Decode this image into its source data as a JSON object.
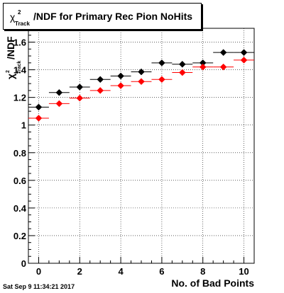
{
  "title": {
    "chi": "χ",
    "superscript": "2",
    "subscript": "Track",
    "main": "/NDF for Primary Rec Pion NoHits"
  },
  "timestamp": "Sat Sep  9 11:34:21 2017",
  "chart_data": {
    "type": "scatter",
    "xlabel": "No. of Bad Points",
    "ylabel": {
      "chi": "χ",
      "superscript": "2",
      "subscript": "Track",
      "suffix": "/NDF"
    },
    "xlim": [
      -0.5,
      10.5
    ],
    "ylim": [
      0,
      1.7
    ],
    "xticks": [
      0,
      2,
      4,
      6,
      8,
      10
    ],
    "yticks": [
      0,
      0.2,
      0.4,
      0.6,
      0.8,
      1,
      1.2,
      1.4,
      1.6
    ],
    "ytick_labels": [
      "0",
      "0.2",
      "0.4",
      "0.6",
      "0.8",
      "1",
      "1.2",
      "1.4",
      "1.6"
    ],
    "xtick_labels": [
      "0",
      "2",
      "4",
      "6",
      "8",
      "10"
    ],
    "x_bin_halfwidth": 0.5,
    "grid": true,
    "series": [
      {
        "color": "#000000",
        "x": [
          0,
          1,
          2,
          3,
          4,
          5,
          6,
          7,
          8,
          9,
          10
        ],
        "y": [
          1.13,
          1.235,
          1.275,
          1.33,
          1.355,
          1.385,
          1.45,
          1.44,
          1.45,
          1.525,
          1.525
        ]
      },
      {
        "color": "#ff0000",
        "x": [
          0,
          1,
          2,
          3,
          4,
          5,
          6,
          7,
          8,
          9,
          10
        ],
        "y": [
          1.05,
          1.155,
          1.195,
          1.25,
          1.285,
          1.315,
          1.33,
          1.38,
          1.42,
          1.42,
          1.47
        ]
      }
    ]
  }
}
